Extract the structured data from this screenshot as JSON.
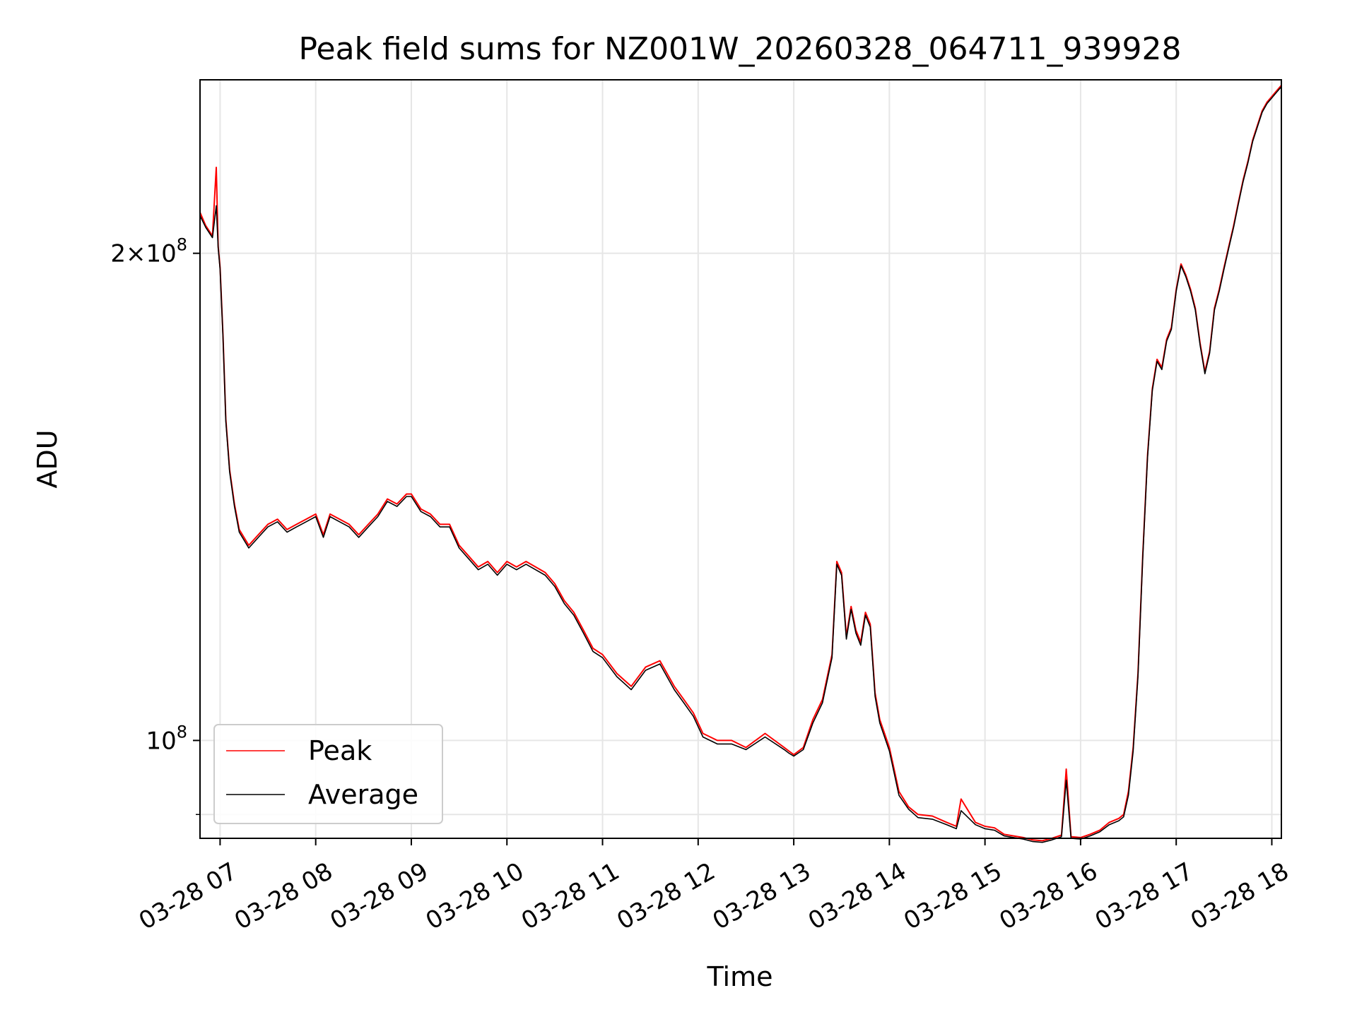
{
  "chart_data": {
    "type": "line",
    "title": "Peak field sums for NZ001W_20260328_064711_939928",
    "xlabel": "Time",
    "ylabel": "ADU",
    "yscale": "log",
    "xlim": [
      6.79,
      18.1
    ],
    "ylim": [
      87000000,
      256000000
    ],
    "grid": true,
    "legend_position": "lower-left",
    "x_ticks": [
      {
        "value": 7,
        "label": "03-28 07"
      },
      {
        "value": 8,
        "label": "03-28 08"
      },
      {
        "value": 9,
        "label": "03-28 09"
      },
      {
        "value": 10,
        "label": "03-28 10"
      },
      {
        "value": 11,
        "label": "03-28 11"
      },
      {
        "value": 12,
        "label": "03-28 12"
      },
      {
        "value": 13,
        "label": "03-28 13"
      },
      {
        "value": 14,
        "label": "03-28 14"
      },
      {
        "value": 15,
        "label": "03-28 15"
      },
      {
        "value": 16,
        "label": "03-28 16"
      },
      {
        "value": 17,
        "label": "03-28 17"
      },
      {
        "value": 18,
        "label": "03-28 18"
      }
    ],
    "y_ticks": [
      {
        "value": 100000000,
        "base": "10",
        "exp": "8",
        "mult": ""
      },
      {
        "value": 200000000,
        "base": "10",
        "exp": "8",
        "mult": "2"
      }
    ],
    "y_minor_ticks": [
      90000000
    ],
    "series": [
      {
        "name": "Peak",
        "color": "#ff0000",
        "x": [
          6.79,
          6.85,
          6.92,
          6.96,
          6.98,
          7.0,
          7.03,
          7.06,
          7.1,
          7.15,
          7.2,
          7.3,
          7.4,
          7.5,
          7.6,
          7.7,
          7.8,
          7.9,
          8.0,
          8.08,
          8.15,
          8.25,
          8.35,
          8.45,
          8.55,
          8.65,
          8.75,
          8.85,
          8.95,
          9.0,
          9.1,
          9.2,
          9.3,
          9.4,
          9.5,
          9.6,
          9.7,
          9.8,
          9.9,
          10.0,
          10.1,
          10.2,
          10.3,
          10.4,
          10.5,
          10.6,
          10.7,
          10.8,
          10.9,
          11.0,
          11.15,
          11.3,
          11.45,
          11.6,
          11.75,
          11.85,
          11.95,
          12.05,
          12.2,
          12.35,
          12.5,
          12.7,
          12.9,
          12.95,
          13.0,
          13.1,
          13.2,
          13.3,
          13.4,
          13.45,
          13.5,
          13.55,
          13.6,
          13.65,
          13.7,
          13.75,
          13.8,
          13.85,
          13.9,
          14.0,
          14.1,
          14.2,
          14.3,
          14.45,
          14.6,
          14.7,
          14.75,
          14.9,
          15.0,
          15.1,
          15.2,
          15.3,
          15.4,
          15.5,
          15.6,
          15.7,
          15.75,
          15.8,
          15.85,
          15.9,
          16.0,
          16.1,
          16.2,
          16.3,
          16.4,
          16.45,
          16.5,
          16.55,
          16.6,
          16.65,
          16.7,
          16.75,
          16.8,
          16.85,
          16.9,
          16.95,
          17.0,
          17.05,
          17.1,
          17.15,
          17.2,
          17.25,
          17.3,
          17.35,
          17.4,
          17.45,
          17.5,
          17.55,
          17.6,
          17.65,
          17.7,
          17.75,
          17.8,
          17.85,
          17.9,
          17.95,
          18.0,
          18.05,
          18.1
        ],
        "y": [
          212000000,
          208000000,
          205000000,
          226000000,
          202000000,
          196000000,
          178000000,
          158000000,
          147000000,
          140000000,
          135000000,
          132000000,
          134000000,
          136000000,
          137000000,
          135000000,
          136000000,
          137000000,
          138000000,
          134000000,
          138000000,
          137000000,
          136000000,
          134000000,
          136000000,
          138000000,
          141000000,
          140000000,
          142000000,
          142000000,
          139000000,
          138000000,
          136000000,
          136000000,
          132000000,
          130000000,
          128000000,
          129000000,
          127000000,
          129000000,
          128000000,
          129000000,
          128000000,
          127000000,
          125000000,
          122000000,
          120000000,
          117000000,
          114000000,
          113000000,
          110000000,
          108000000,
          111000000,
          112000000,
          108000000,
          106000000,
          104000000,
          101000000,
          100000000,
          100000000,
          99000000,
          101000000,
          99000000,
          98500000,
          98000000,
          99000000,
          103000000,
          106000000,
          113000000,
          129000000,
          127000000,
          116000000,
          121000000,
          117000000,
          115000000,
          120000000,
          118000000,
          107000000,
          103000000,
          99000000,
          93000000,
          91000000,
          90000000,
          89800000,
          89000000,
          88500000,
          92000000,
          89000000,
          88500000,
          88300000,
          87500000,
          87300000,
          87100000,
          86800000,
          86700000,
          87000000,
          87200000,
          87400000,
          96000000,
          87200000,
          87100000,
          87500000,
          88000000,
          89000000,
          89500000,
          90000000,
          93000000,
          99000000,
          110000000,
          130000000,
          150000000,
          165000000,
          172000000,
          170000000,
          177000000,
          180000000,
          190000000,
          197000000,
          194000000,
          190000000,
          185000000,
          176000000,
          169000000,
          174000000,
          185000000,
          190000000,
          196000000,
          202000000,
          208000000,
          215000000,
          222000000,
          228000000,
          235000000,
          240000000,
          245000000,
          248000000,
          250000000,
          252000000,
          254000000
        ]
      },
      {
        "name": "Average",
        "color": "#000000",
        "x": [
          6.79,
          6.85,
          6.92,
          6.96,
          6.98,
          7.0,
          7.03,
          7.06,
          7.1,
          7.15,
          7.2,
          7.3,
          7.4,
          7.5,
          7.6,
          7.7,
          7.8,
          7.9,
          8.0,
          8.08,
          8.15,
          8.25,
          8.35,
          8.45,
          8.55,
          8.65,
          8.75,
          8.85,
          8.95,
          9.0,
          9.1,
          9.2,
          9.3,
          9.4,
          9.5,
          9.6,
          9.7,
          9.8,
          9.9,
          10.0,
          10.1,
          10.2,
          10.3,
          10.4,
          10.5,
          10.6,
          10.7,
          10.8,
          10.9,
          11.0,
          11.15,
          11.3,
          11.45,
          11.6,
          11.75,
          11.85,
          11.95,
          12.05,
          12.2,
          12.35,
          12.5,
          12.7,
          12.9,
          12.95,
          13.0,
          13.1,
          13.2,
          13.3,
          13.4,
          13.45,
          13.5,
          13.55,
          13.6,
          13.65,
          13.7,
          13.75,
          13.8,
          13.85,
          13.9,
          14.0,
          14.1,
          14.2,
          14.3,
          14.45,
          14.6,
          14.7,
          14.75,
          14.9,
          15.0,
          15.1,
          15.2,
          15.3,
          15.4,
          15.5,
          15.6,
          15.7,
          15.75,
          15.8,
          15.85,
          15.9,
          16.0,
          16.1,
          16.2,
          16.3,
          16.4,
          16.45,
          16.5,
          16.55,
          16.6,
          16.65,
          16.7,
          16.75,
          16.8,
          16.85,
          16.9,
          16.95,
          17.0,
          17.05,
          17.1,
          17.15,
          17.2,
          17.25,
          17.3,
          17.35,
          17.4,
          17.45,
          17.5,
          17.55,
          17.6,
          17.65,
          17.7,
          17.75,
          17.8,
          17.85,
          17.9,
          17.95,
          18.0,
          18.05,
          18.1
        ],
        "y": [
          211000000,
          207500000,
          204500000,
          214000000,
          201500000,
          195500000,
          177500000,
          157500000,
          146500000,
          139500000,
          134500000,
          131500000,
          133500000,
          135500000,
          136500000,
          134500000,
          135500000,
          136500000,
          137500000,
          133500000,
          137500000,
          136500000,
          135500000,
          133500000,
          135500000,
          137500000,
          140500000,
          139500000,
          141500000,
          141500000,
          138500000,
          137500000,
          135500000,
          135500000,
          131500000,
          129500000,
          127500000,
          128500000,
          126500000,
          128500000,
          127500000,
          128500000,
          127500000,
          126500000,
          124500000,
          121500000,
          119500000,
          116500000,
          113500000,
          112500000,
          109500000,
          107500000,
          110500000,
          111500000,
          107500000,
          105500000,
          103500000,
          100500000,
          99500000,
          99500000,
          98700000,
          100500000,
          98700000,
          98200000,
          97800000,
          98700000,
          102500000,
          105500000,
          112500000,
          128500000,
          126500000,
          115500000,
          120500000,
          116500000,
          114500000,
          119500000,
          117500000,
          106500000,
          102500000,
          98500000,
          92500000,
          90700000,
          89600000,
          89400000,
          88700000,
          88200000,
          90500000,
          88700000,
          88200000,
          88000000,
          87300000,
          87100000,
          86900000,
          86600000,
          86500000,
          86800000,
          87000000,
          87200000,
          94500000,
          87000000,
          86900000,
          87300000,
          87800000,
          88700000,
          89200000,
          89700000,
          92500000,
          98500000,
          109500000,
          129500000,
          149500000,
          164500000,
          171500000,
          169500000,
          176500000,
          179500000,
          189500000,
          196500000,
          193500000,
          189500000,
          184500000,
          175500000,
          168500000,
          173500000,
          184500000,
          189500000,
          195500000,
          201500000,
          207500000,
          214500000,
          221500000,
          227500000,
          234500000,
          239500000,
          244500000,
          247500000,
          249500000,
          251500000,
          253500000
        ]
      }
    ]
  }
}
